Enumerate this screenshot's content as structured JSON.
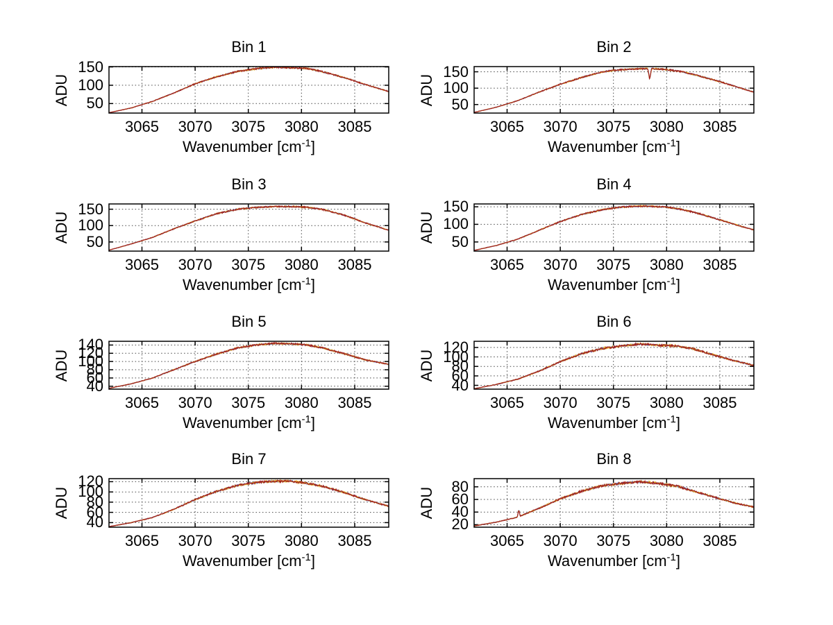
{
  "figure": {
    "background": "#ffffff"
  },
  "ylabel": "ADU",
  "xlabel_parts": {
    "text": "Wavenumber [cm",
    "sup": "-1",
    "end": "]"
  },
  "colors": {
    "axis": "#000000",
    "grid": "#444444",
    "trace_blue": "#4858aa",
    "trace_yellow": "#e2ab1e",
    "trace_red": "#a02020"
  },
  "chart_data": [
    {
      "type": "line",
      "title": "Bin 1",
      "xlabel": "Wavenumber [cm^-1]",
      "ylabel": "ADU",
      "grid": true,
      "xlim": [
        3061.9,
        3088.2
      ],
      "xticks": [
        3065,
        3070,
        3075,
        3080,
        3085
      ],
      "ylim": [
        24,
        151
      ],
      "yticks": [
        50,
        100,
        150
      ],
      "noise": 2.0,
      "features": {},
      "anchors": [
        [
          3061.9,
          25
        ],
        [
          3064,
          38
        ],
        [
          3066,
          56
        ],
        [
          3068,
          79
        ],
        [
          3070,
          104
        ],
        [
          3072,
          123
        ],
        [
          3074,
          138
        ],
        [
          3076,
          146
        ],
        [
          3077.5,
          149
        ],
        [
          3079,
          148
        ],
        [
          3080.5,
          146
        ],
        [
          3082,
          137
        ],
        [
          3084,
          121
        ],
        [
          3086,
          102
        ],
        [
          3088.2,
          83
        ]
      ]
    },
    {
      "type": "line",
      "title": "Bin 2",
      "xlabel": "Wavenumber [cm^-1]",
      "ylabel": "ADU",
      "grid": true,
      "xlim": [
        3061.9,
        3088.2
      ],
      "xticks": [
        3065,
        3070,
        3075,
        3080,
        3085
      ],
      "ylim": [
        24,
        166
      ],
      "yticks": [
        50,
        100,
        150
      ],
      "noise": 2.2,
      "features": {
        "dip": {
          "x": 3078.4,
          "depth": 33,
          "width": 0.18
        }
      },
      "anchors": [
        [
          3061.9,
          26
        ],
        [
          3064,
          42
        ],
        [
          3066,
          62
        ],
        [
          3068,
          88
        ],
        [
          3070,
          112
        ],
        [
          3072,
          133
        ],
        [
          3074,
          150
        ],
        [
          3075.5,
          156
        ],
        [
          3077,
          159
        ],
        [
          3078.5,
          160
        ],
        [
          3080,
          157
        ],
        [
          3081.5,
          150
        ],
        [
          3083,
          138
        ],
        [
          3085,
          120
        ],
        [
          3086.5,
          105
        ],
        [
          3088.2,
          88
        ]
      ]
    },
    {
      "type": "line",
      "title": "Bin 3",
      "xlabel": "Wavenumber [cm^-1]",
      "ylabel": "ADU",
      "grid": true,
      "xlim": [
        3061.9,
        3088.2
      ],
      "xticks": [
        3065,
        3070,
        3075,
        3080,
        3085
      ],
      "ylim": [
        22,
        166
      ],
      "yticks": [
        50,
        100,
        150
      ],
      "noise": 2.2,
      "features": {},
      "anchors": [
        [
          3061.9,
          25
        ],
        [
          3064,
          44
        ],
        [
          3066,
          64
        ],
        [
          3068,
          90
        ],
        [
          3070,
          114
        ],
        [
          3072,
          136
        ],
        [
          3074,
          150
        ],
        [
          3076,
          156
        ],
        [
          3077.5,
          158
        ],
        [
          3079,
          158
        ],
        [
          3080.5,
          156
        ],
        [
          3082,
          149
        ],
        [
          3084,
          132
        ],
        [
          3086,
          108
        ],
        [
          3088.2,
          86
        ]
      ]
    },
    {
      "type": "line",
      "title": "Bin 4",
      "xlabel": "Wavenumber [cm^-1]",
      "ylabel": "ADU",
      "grid": true,
      "xlim": [
        3061.9,
        3088.2
      ],
      "xticks": [
        3065,
        3070,
        3075,
        3080,
        3085
      ],
      "ylim": [
        24,
        158
      ],
      "yticks": [
        50,
        100,
        150
      ],
      "noise": 2.2,
      "features": {},
      "anchors": [
        [
          3061.9,
          26
        ],
        [
          3064,
          40
        ],
        [
          3066,
          58
        ],
        [
          3068,
          83
        ],
        [
          3070,
          108
        ],
        [
          3072,
          128
        ],
        [
          3074,
          142
        ],
        [
          3076,
          150
        ],
        [
          3078,
          152
        ],
        [
          3080,
          149
        ],
        [
          3081.5,
          142
        ],
        [
          3083,
          131
        ],
        [
          3085,
          113
        ],
        [
          3086.5,
          99
        ],
        [
          3088.2,
          84
        ]
      ]
    },
    {
      "type": "line",
      "title": "Bin 5",
      "xlabel": "Wavenumber [cm^-1]",
      "ylabel": "ADU",
      "grid": true,
      "xlim": [
        3061.9,
        3088.2
      ],
      "xticks": [
        3065,
        3070,
        3075,
        3080,
        3085
      ],
      "ylim": [
        33,
        149
      ],
      "yticks": [
        40,
        60,
        80,
        100,
        120,
        140
      ],
      "noise": 2.0,
      "features": {},
      "anchors": [
        [
          3061.9,
          35
        ],
        [
          3064,
          46
        ],
        [
          3066,
          60
        ],
        [
          3068,
          80
        ],
        [
          3070,
          100
        ],
        [
          3072,
          118
        ],
        [
          3074,
          133
        ],
        [
          3076,
          141
        ],
        [
          3077.5,
          144
        ],
        [
          3079,
          143
        ],
        [
          3080.5,
          140
        ],
        [
          3082,
          133
        ],
        [
          3084,
          119
        ],
        [
          3086,
          104
        ],
        [
          3088.2,
          93
        ]
      ]
    },
    {
      "type": "line",
      "title": "Bin 6",
      "xlabel": "Wavenumber [cm^-1]",
      "ylabel": "ADU",
      "grid": true,
      "xlim": [
        3061.9,
        3088.2
      ],
      "xticks": [
        3065,
        3070,
        3075,
        3080,
        3085
      ],
      "ylim": [
        32,
        133
      ],
      "yticks": [
        40,
        60,
        80,
        100,
        120
      ],
      "noise": 2.2,
      "features": {},
      "anchors": [
        [
          3061.9,
          33
        ],
        [
          3064,
          42
        ],
        [
          3066,
          53
        ],
        [
          3068,
          70
        ],
        [
          3070,
          90
        ],
        [
          3072,
          107
        ],
        [
          3074,
          118
        ],
        [
          3076,
          124
        ],
        [
          3077.5,
          127
        ],
        [
          3079,
          125
        ],
        [
          3081,
          123
        ],
        [
          3082.5,
          117
        ],
        [
          3084,
          107
        ],
        [
          3086,
          94
        ],
        [
          3088.2,
          82
        ]
      ]
    },
    {
      "type": "line",
      "title": "Bin 7",
      "xlabel": "Wavenumber [cm^-1]",
      "ylabel": "ADU",
      "grid": true,
      "xlim": [
        3061.9,
        3088.2
      ],
      "xticks": [
        3065,
        3070,
        3075,
        3080,
        3085
      ],
      "ylim": [
        31,
        126
      ],
      "yticks": [
        40,
        60,
        80,
        100,
        120
      ],
      "noise": 2.0,
      "features": {},
      "anchors": [
        [
          3061.9,
          32
        ],
        [
          3064,
          40
        ],
        [
          3066,
          50
        ],
        [
          3068,
          66
        ],
        [
          3070,
          85
        ],
        [
          3072,
          101
        ],
        [
          3074,
          113
        ],
        [
          3076,
          119
        ],
        [
          3077.5,
          121
        ],
        [
          3079,
          121
        ],
        [
          3080.5,
          117
        ],
        [
          3082,
          111
        ],
        [
          3084,
          99
        ],
        [
          3086,
          85
        ],
        [
          3088.2,
          72
        ]
      ]
    },
    {
      "type": "line",
      "title": "Bin 8",
      "xlabel": "Wavenumber [cm^-1]",
      "ylabel": "ADU",
      "grid": true,
      "xlim": [
        3061.9,
        3088.2
      ],
      "xticks": [
        3065,
        3070,
        3075,
        3080,
        3085
      ],
      "ylim": [
        16,
        93
      ],
      "yticks": [
        20,
        40,
        60,
        80
      ],
      "noise": 1.8,
      "features": {
        "spike": {
          "x": 3066.1,
          "height": 11,
          "width": 0.14
        }
      },
      "anchors": [
        [
          3061.9,
          18
        ],
        [
          3064,
          24
        ],
        [
          3066,
          32
        ],
        [
          3068,
          46
        ],
        [
          3070,
          61
        ],
        [
          3072,
          73
        ],
        [
          3074,
          82
        ],
        [
          3076,
          86
        ],
        [
          3077.5,
          88
        ],
        [
          3079,
          86
        ],
        [
          3081,
          81
        ],
        [
          3083,
          71
        ],
        [
          3085,
          61
        ],
        [
          3086.5,
          54
        ],
        [
          3088.2,
          48
        ]
      ]
    }
  ]
}
